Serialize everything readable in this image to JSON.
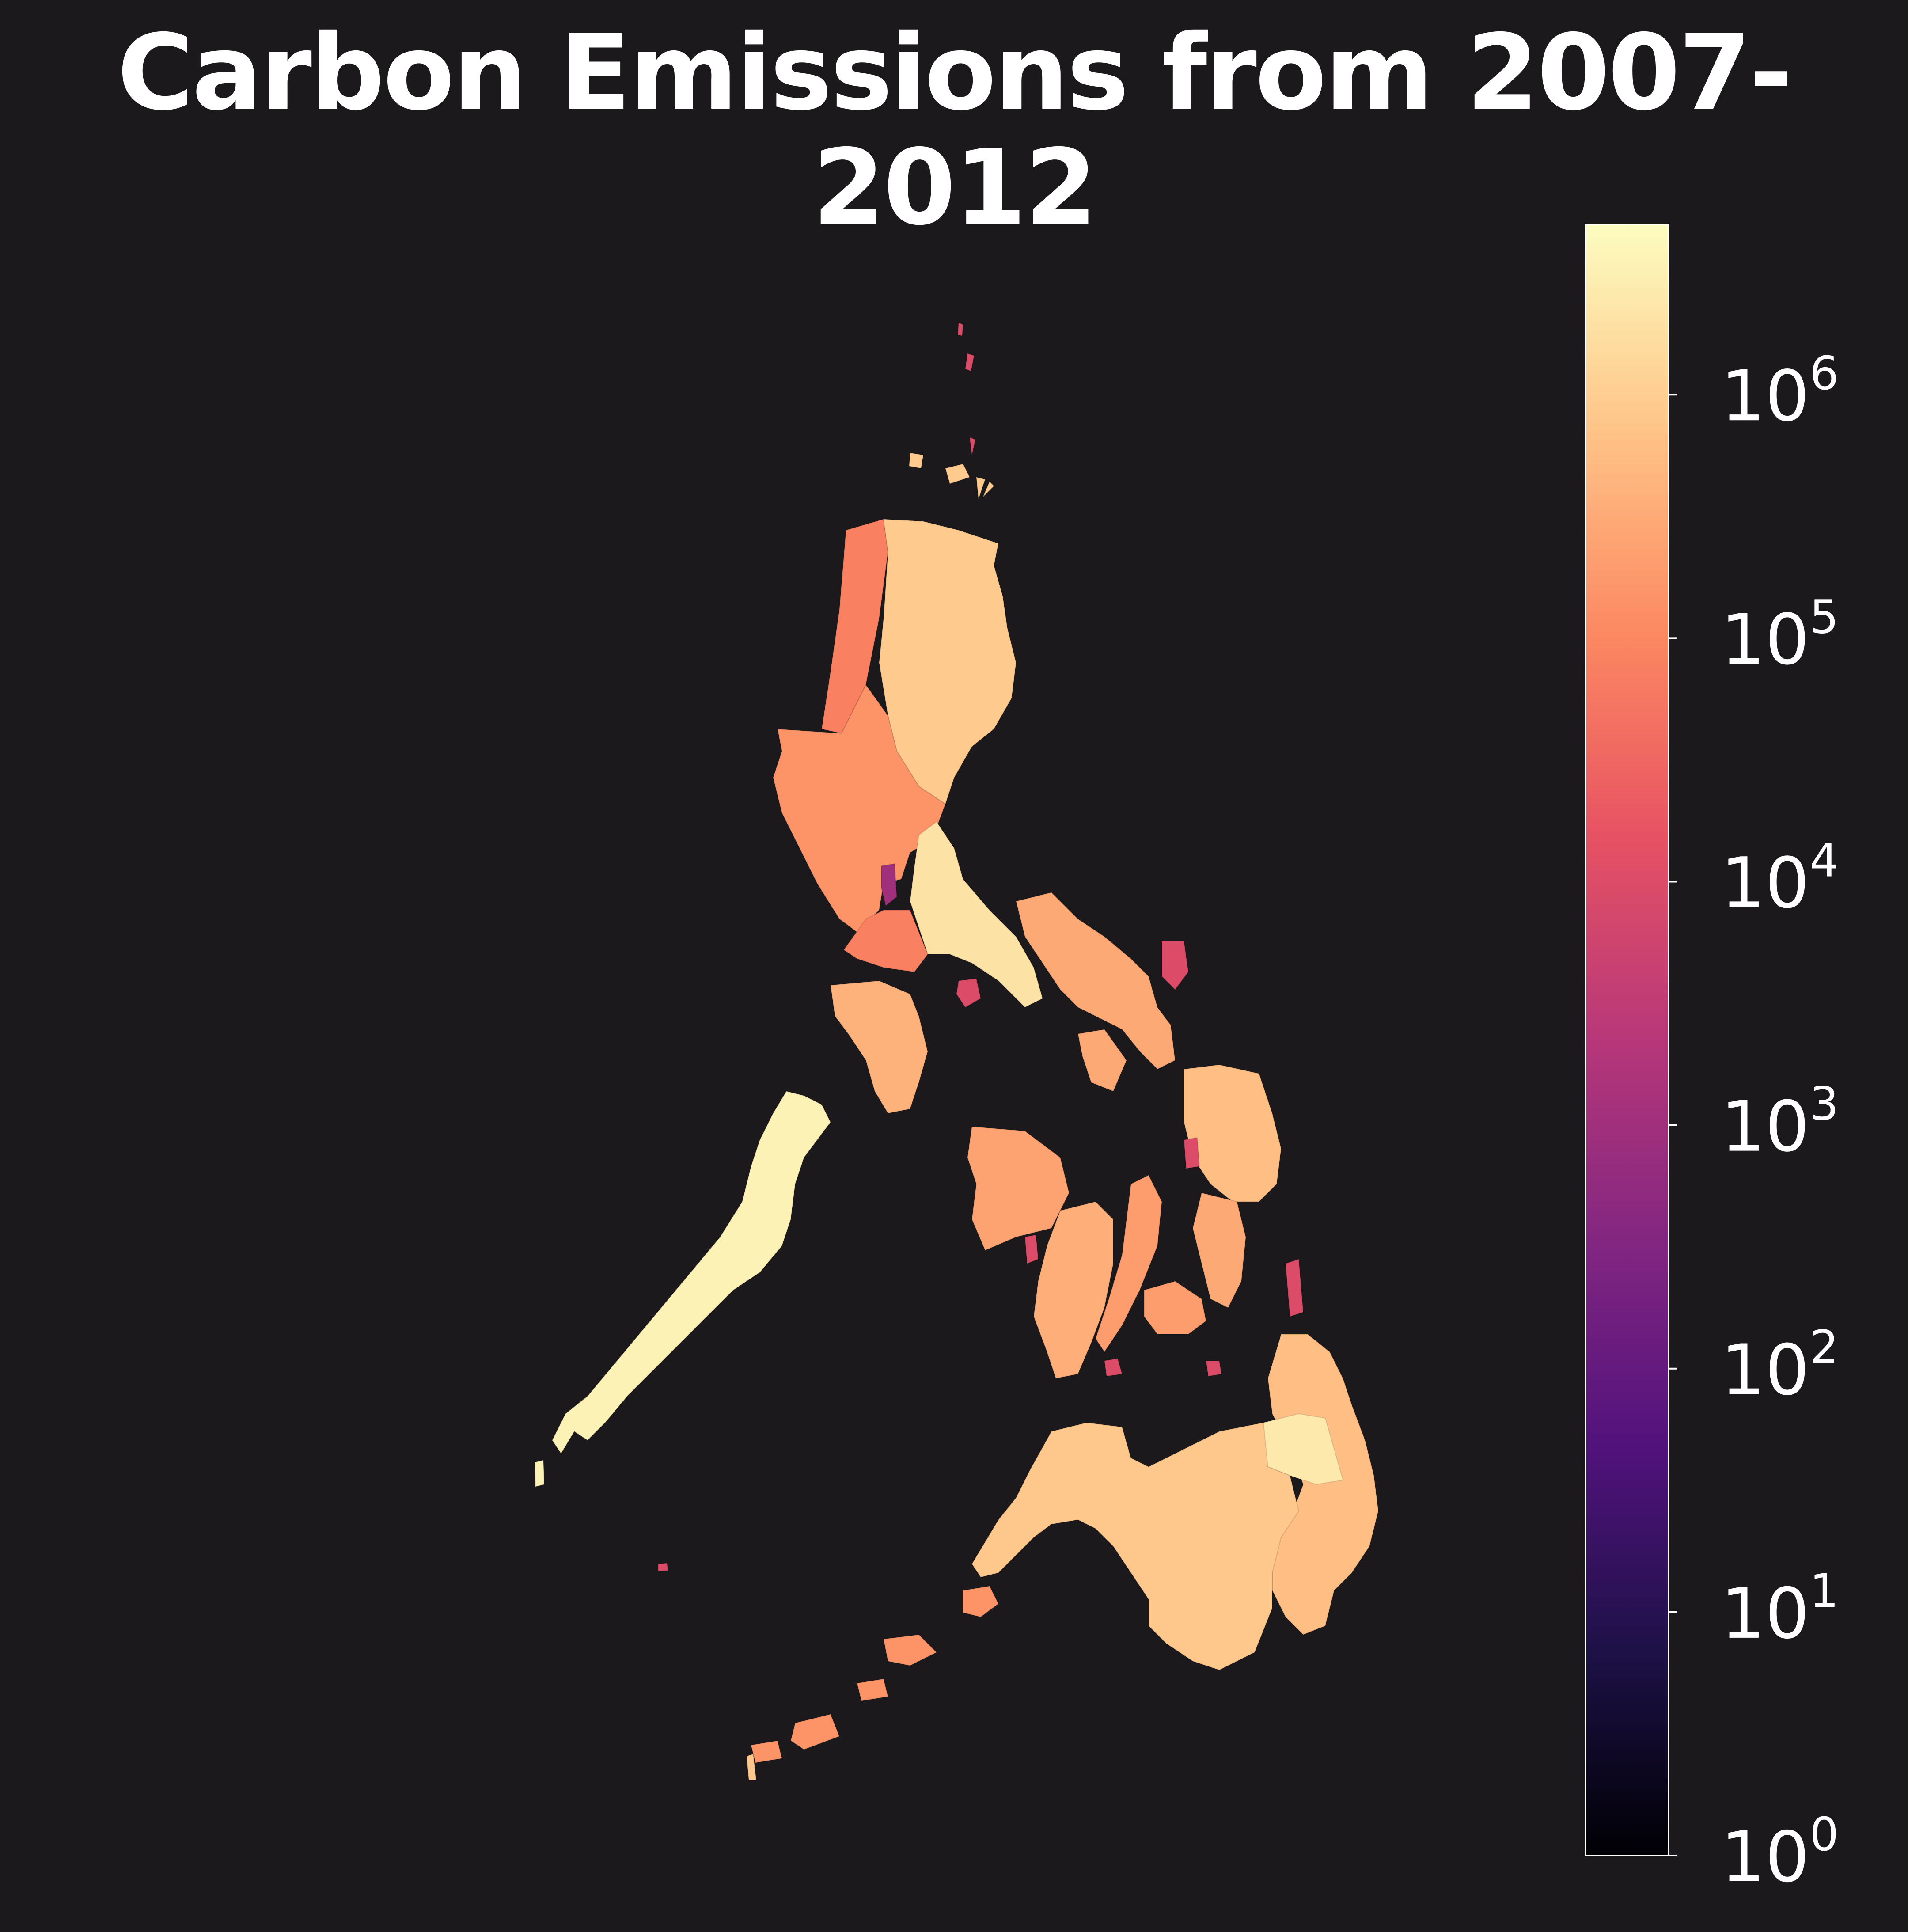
{
  "title": "Carbon Emissions from 2007-2012",
  "colormap": {
    "name": "magma",
    "stops": [
      "#000004",
      "#1d1147",
      "#51127c",
      "#822681",
      "#b73779",
      "#e75263",
      "#fc8961",
      "#fec488",
      "#fcfdbf"
    ]
  },
  "colorbar": {
    "scale": "log",
    "range": [
      1,
      5000000
    ],
    "ticks": [
      {
        "value": 1,
        "base": "10",
        "exp": "0"
      },
      {
        "value": 10,
        "base": "10",
        "exp": "1"
      },
      {
        "value": 100,
        "base": "10",
        "exp": "2"
      },
      {
        "value": 1000,
        "base": "10",
        "exp": "3"
      },
      {
        "value": 10000,
        "base": "10",
        "exp": "4"
      },
      {
        "value": 100000,
        "base": "10",
        "exp": "5"
      },
      {
        "value": 1000000,
        "base": "10",
        "exp": "6"
      }
    ]
  },
  "regions": [
    {
      "name": "palawan",
      "value": 3500000
    },
    {
      "name": "northern-luzon-east",
      "value": 900000
    },
    {
      "name": "northern-luzon-west",
      "value": 80000
    },
    {
      "name": "central-luzon",
      "value": 150000
    },
    {
      "name": "manila-area",
      "value": 1000
    },
    {
      "name": "southern-luzon",
      "value": 2000000
    },
    {
      "name": "bicol",
      "value": 300000
    },
    {
      "name": "mindoro",
      "value": 400000
    },
    {
      "name": "panay",
      "value": 250000
    },
    {
      "name": "negros",
      "value": 350000
    },
    {
      "name": "cebu",
      "value": 200000
    },
    {
      "name": "bohol",
      "value": 200000
    },
    {
      "name": "samar",
      "value": 600000
    },
    {
      "name": "leyte",
      "value": 300000
    },
    {
      "name": "mindanao-west",
      "value": 800000
    },
    {
      "name": "mindanao-east",
      "value": 600000
    },
    {
      "name": "bukidnon-agusan",
      "value": 2500000
    },
    {
      "name": "sulu-archipelago",
      "value": 150000
    },
    {
      "name": "small-islands-red",
      "value": 10000
    },
    {
      "name": "batanes",
      "value": 10000
    }
  ]
}
